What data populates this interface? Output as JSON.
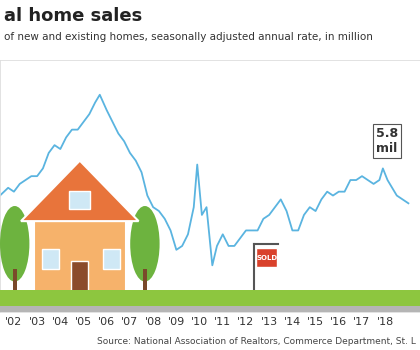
{
  "chart_data": {
    "type": "line",
    "title": "al home sales",
    "subtitle": "of new and existing homes, seasonally adjusted annual rate, in million",
    "source": "Source: National Association of Realtors, Commerce Department, St. L",
    "x": [
      2001.4,
      2001.75,
      2002.0,
      2002.25,
      2002.5,
      2002.75,
      2003.0,
      2003.25,
      2003.5,
      2003.75,
      2004.0,
      2004.25,
      2004.5,
      2004.75,
      2005.0,
      2005.25,
      2005.5,
      2005.7,
      2006.0,
      2006.25,
      2006.5,
      2006.75,
      2007.0,
      2007.25,
      2007.5,
      2007.75,
      2008.0,
      2008.25,
      2008.5,
      2008.75,
      2009.0,
      2009.25,
      2009.5,
      2009.75,
      2009.9,
      2010.1,
      2010.3,
      2010.55,
      2010.75,
      2011.0,
      2011.25,
      2011.5,
      2011.75,
      2012.0,
      2012.25,
      2012.5,
      2012.75,
      2013.0,
      2013.25,
      2013.5,
      2013.75,
      2014.0,
      2014.25,
      2014.5,
      2014.75,
      2015.0,
      2015.25,
      2015.5,
      2015.75,
      2016.0,
      2016.25,
      2016.5,
      2016.75,
      2017.0,
      2017.25,
      2017.5,
      2017.75,
      2017.9,
      2018.1,
      2018.3,
      2018.5,
      2018.75,
      2019.0
    ],
    "values": [
      5.9,
      6.1,
      6.0,
      6.2,
      6.3,
      6.4,
      6.4,
      6.6,
      7.0,
      7.2,
      7.1,
      7.4,
      7.6,
      7.6,
      7.8,
      8.0,
      8.3,
      8.5,
      8.1,
      7.8,
      7.5,
      7.3,
      7.0,
      6.8,
      6.5,
      5.9,
      5.6,
      5.5,
      5.3,
      5.0,
      4.5,
      4.6,
      4.9,
      5.6,
      6.7,
      5.4,
      5.6,
      4.1,
      4.6,
      4.9,
      4.6,
      4.6,
      4.8,
      5.0,
      5.0,
      5.0,
      5.3,
      5.4,
      5.6,
      5.8,
      5.5,
      5.0,
      5.0,
      5.4,
      5.6,
      5.5,
      5.8,
      6.0,
      5.9,
      6.0,
      6.0,
      6.3,
      6.3,
      6.4,
      6.3,
      6.2,
      6.3,
      6.6,
      6.3,
      6.1,
      5.9,
      5.8,
      5.7
    ],
    "color": "#5ab4e0",
    "xlim": [
      2001.4,
      2019.5
    ],
    "xticks": [
      {
        "value": 2002,
        "label": "'02"
      },
      {
        "value": 2003,
        "label": "'03"
      },
      {
        "value": 2004,
        "label": "'04"
      },
      {
        "value": 2005,
        "label": "'05"
      },
      {
        "value": 2006,
        "label": "'06"
      },
      {
        "value": 2007,
        "label": "'07"
      },
      {
        "value": 2008,
        "label": "'08"
      },
      {
        "value": 2009,
        "label": "'09"
      },
      {
        "value": 2010,
        "label": "'10"
      },
      {
        "value": 2011,
        "label": "'11"
      },
      {
        "value": 2012,
        "label": "'12"
      },
      {
        "value": 2013,
        "label": "'13"
      },
      {
        "value": 2014,
        "label": "'14"
      },
      {
        "value": 2015,
        "label": "'15"
      },
      {
        "value": 2016,
        "label": "'16"
      },
      {
        "value": 2017,
        "label": "'17"
      },
      {
        "value": 2018,
        "label": "'18"
      }
    ],
    "ylim": [
      2.9,
      9.4
    ],
    "tick_labels": "x",
    "grid": false,
    "annotations": [
      {
        "text": "5.8\nmil",
        "x": 2017.6,
        "y": 7.3
      },
      {
        "text": "SOLD",
        "x": 2012.9,
        "y": 4.3
      }
    ]
  }
}
